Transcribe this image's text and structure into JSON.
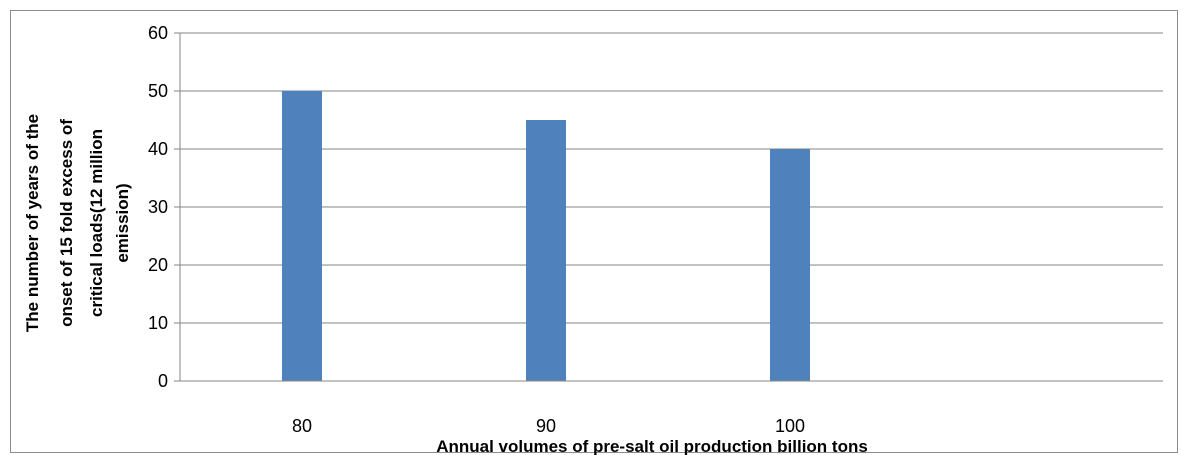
{
  "chart_data": {
    "type": "bar",
    "categories": [
      "80",
      "90",
      "100"
    ],
    "values": [
      50,
      45,
      40
    ],
    "xlabel": "Annual volumes of pre-salt oil production billion tons",
    "ylabel_lines": [
      "The number of years of the",
      "onset of 15 fold excess of",
      "critical loads(12 million",
      "emission)"
    ],
    "y_ticks": [
      "0",
      "10",
      "20",
      "30",
      "40",
      "50",
      "60"
    ],
    "ylim": [
      0,
      60
    ],
    "grid": true,
    "legend": false,
    "colors": {
      "bar": "#4f81bd",
      "grid": "#868686",
      "axis": "#868686",
      "frame": "#8c8c8c"
    }
  }
}
